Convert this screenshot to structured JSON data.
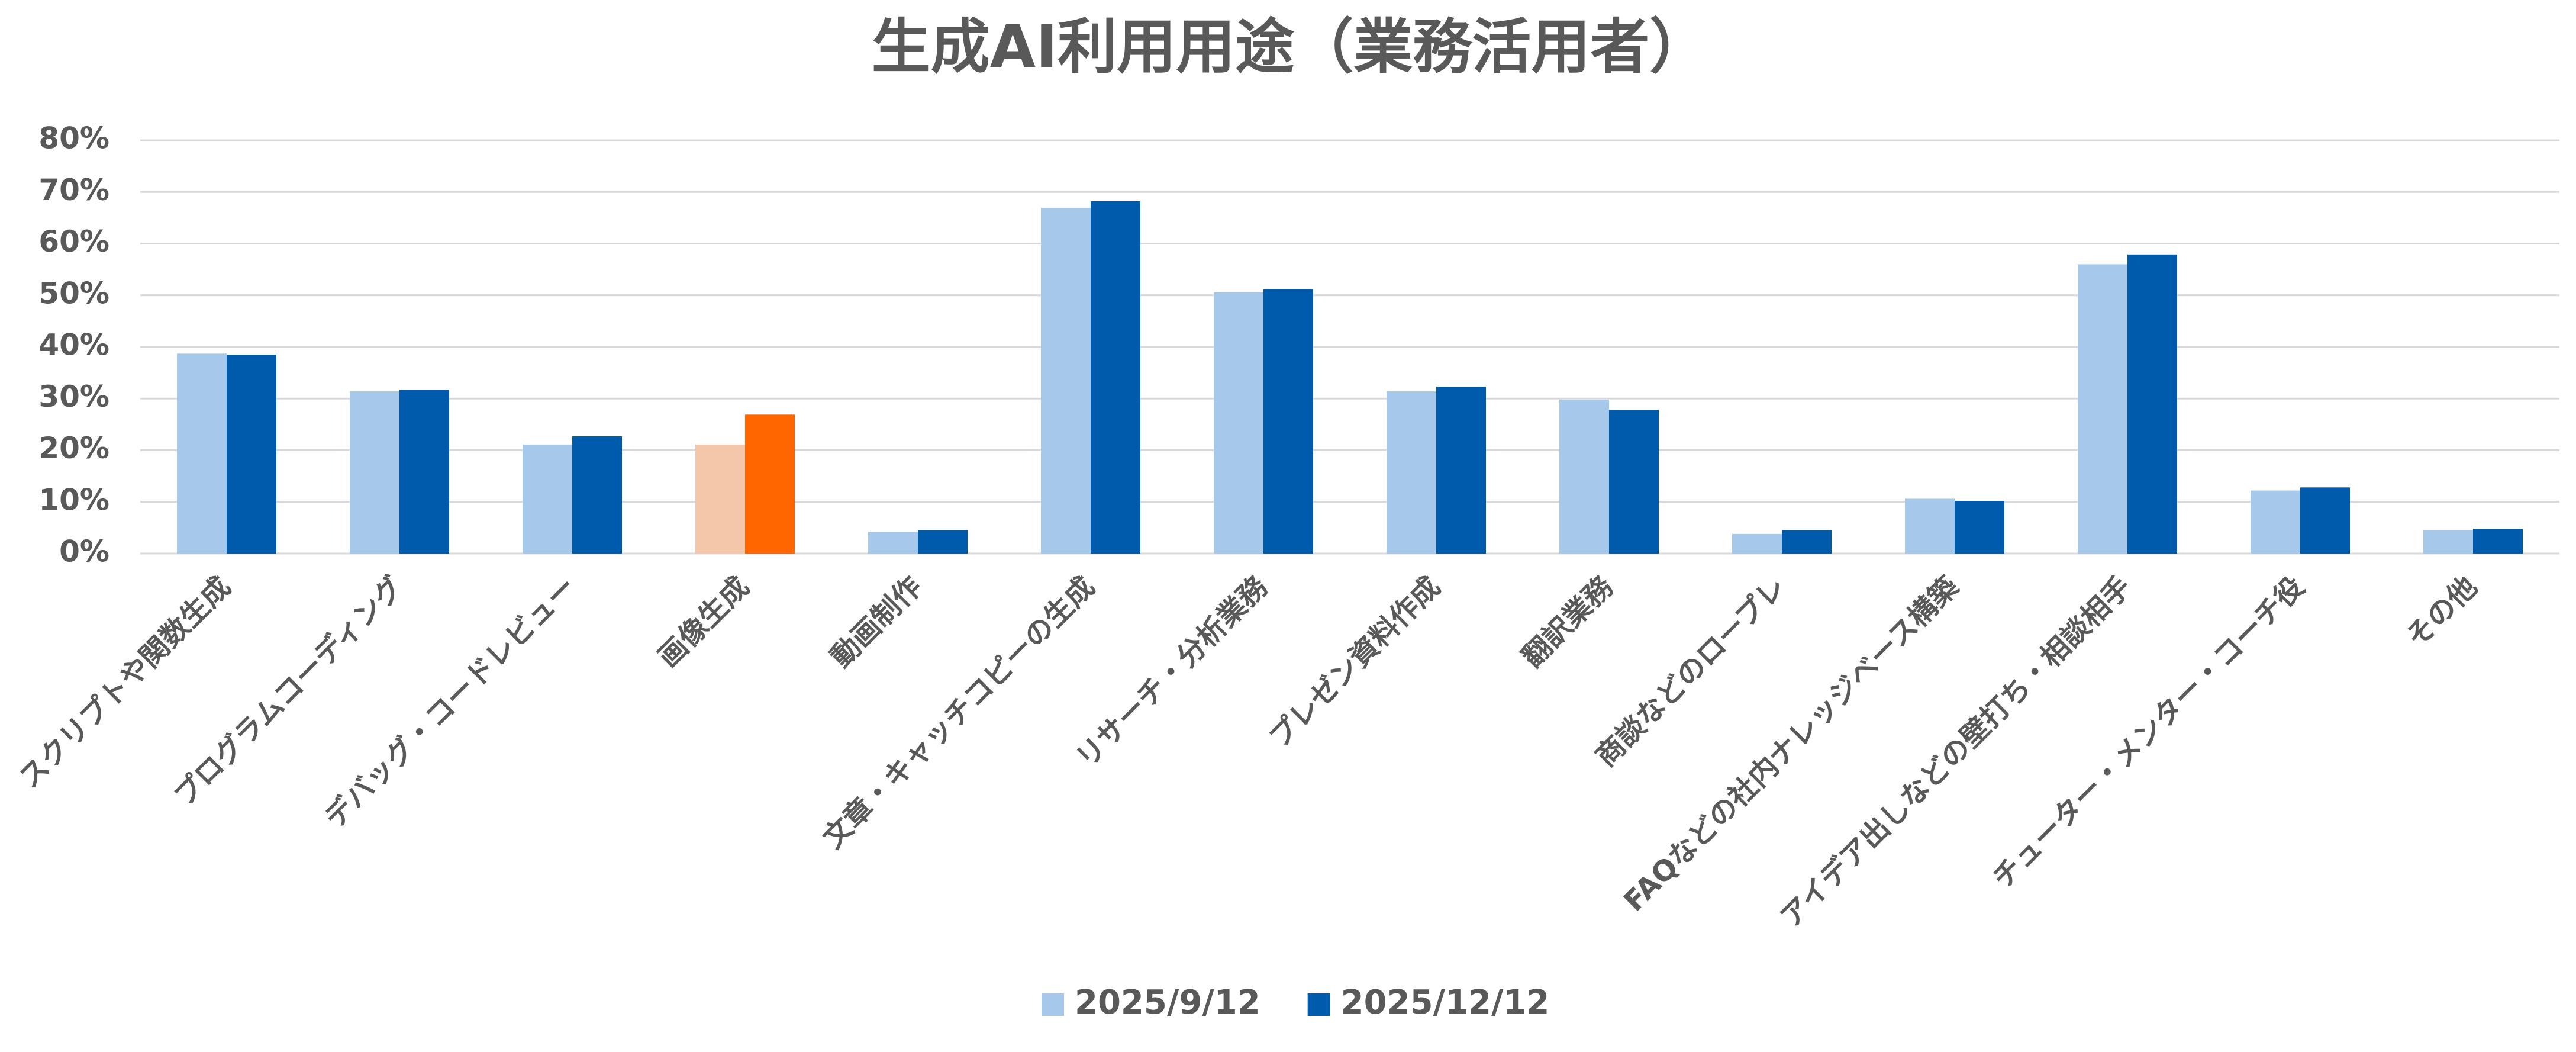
{
  "chart_data": {
    "type": "bar",
    "title": "生成AI利用用途（業務活用者）",
    "categories": [
      "スクリプトや関数生成",
      "プログラムコーディング",
      "デバッグ・コードレビュー",
      "画像生成",
      "動画制作",
      "文章・キャッチコピーの生成",
      "リサーチ・分析業務",
      "プレゼン資料作成",
      "翻訳業務",
      "商談などのロープレ",
      "FAQなどの社内ナレッジベース構築",
      "アイデア出しなどの壁打ち・相談相手",
      "チューター・メンター・コーチ役",
      "その他"
    ],
    "series": [
      {
        "name": "2025/9/12",
        "color": "#a6c8eb",
        "colors": [
          "#a6c8eb",
          "#a6c8eb",
          "#a6c8eb",
          "#f4c7ab",
          "#a6c8eb",
          "#a6c8eb",
          "#a6c8eb",
          "#a6c8eb",
          "#a6c8eb",
          "#a6c8eb",
          "#a6c8eb",
          "#a6c8eb",
          "#a6c8eb",
          "#a6c8eb"
        ],
        "values": [
          38.7,
          31.4,
          21.1,
          21.1,
          4.2,
          66.9,
          50.6,
          31.4,
          29.8,
          3.8,
          10.6,
          56.0,
          12.2,
          4.5
        ]
      },
      {
        "name": "2025/12/12",
        "color": "#005bac",
        "colors": [
          "#005bac",
          "#005bac",
          "#005bac",
          "#ff6600",
          "#005bac",
          "#005bac",
          "#005bac",
          "#005bac",
          "#005bac",
          "#005bac",
          "#005bac",
          "#005bac",
          "#005bac",
          "#005bac"
        ],
        "values": [
          38.5,
          31.7,
          22.7,
          26.9,
          4.5,
          68.2,
          51.2,
          32.3,
          27.8,
          4.5,
          10.2,
          57.9,
          12.8,
          4.8
        ]
      }
    ],
    "ylim": [
      0,
      80
    ],
    "yticks": [
      {
        "value": 0,
        "label": "0%"
      },
      {
        "value": 10,
        "label": "10%"
      },
      {
        "value": 20,
        "label": "20%"
      },
      {
        "value": 30,
        "label": "30%"
      },
      {
        "value": 40,
        "label": "40%"
      },
      {
        "value": 50,
        "label": "50%"
      },
      {
        "value": 60,
        "label": "60%"
      },
      {
        "value": 70,
        "label": "70%"
      },
      {
        "value": 80,
        "label": "80%"
      }
    ],
    "grid": true,
    "legend": "bottom"
  }
}
